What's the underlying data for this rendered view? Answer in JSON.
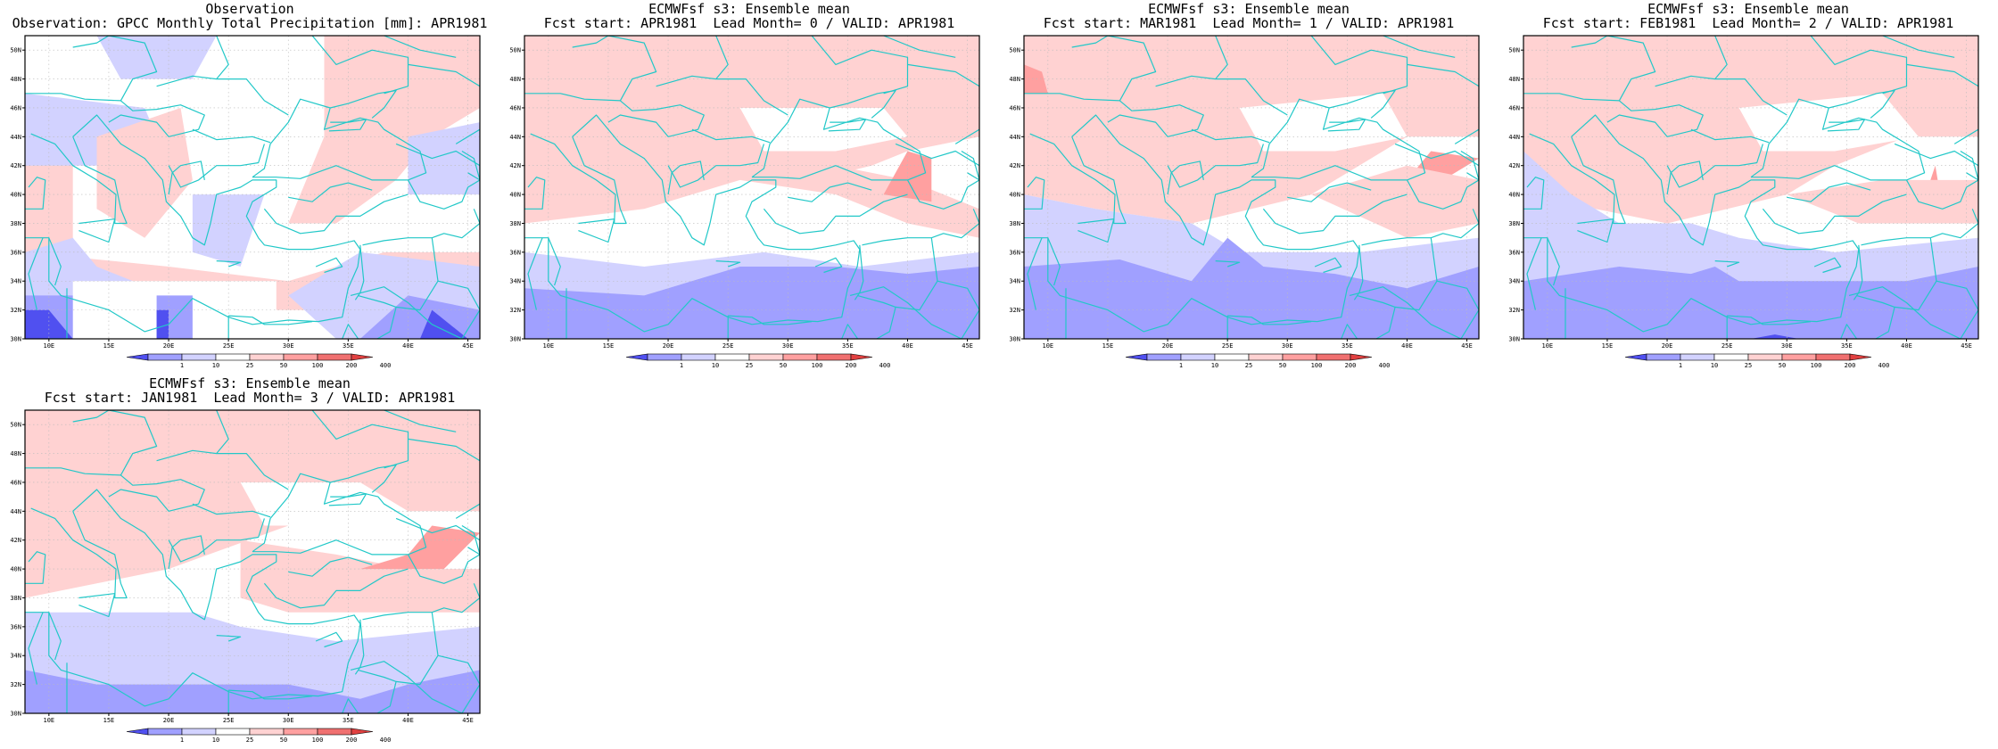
{
  "figure": {
    "panels": [
      {
        "id": "obs",
        "title_line1": "Observation",
        "title_line2": "Observation: GPCC Monthly Total Precipitation [mm]: APR1981",
        "variant": 0
      },
      {
        "id": "lead0",
        "title_line1": "ECMWFsf s3: Ensemble mean",
        "title_line2": "Fcst start: APR1981  Lead Month= 0 / VALID: APR1981",
        "variant": 1
      },
      {
        "id": "lead1",
        "title_line1": "ECMWFsf s3: Ensemble mean",
        "title_line2": "Fcst start: MAR1981  Lead Month= 1 / VALID: APR1981",
        "variant": 2
      },
      {
        "id": "lead2",
        "title_line1": "ECMWFsf s3: Ensemble mean",
        "title_line2": "Fcst start: FEB1981  Lead Month= 2 / VALID: APR1981",
        "variant": 3
      },
      {
        "id": "lead3",
        "title_line1": "ECMWFsf s3: Ensemble mean",
        "title_line2": "Fcst start: JAN1981  Lead Month= 3 / VALID: APR1981",
        "variant": 4
      }
    ],
    "lat_labels": [
      "30N",
      "32N",
      "34N",
      "36N",
      "38N",
      "40N",
      "42N",
      "44N",
      "46N",
      "48N",
      "50N"
    ],
    "lon_labels": [
      "10E",
      "15E",
      "20E",
      "25E",
      "30E",
      "35E",
      "40E",
      "45E"
    ],
    "lon_range": [
      8,
      46
    ],
    "lat_range": [
      30,
      51
    ],
    "colorbar": {
      "levels": [
        "1",
        "10",
        "25",
        "50",
        "100",
        "200",
        "400"
      ],
      "colors": [
        "#5050f0",
        "#a0a0ff",
        "#d2d2ff",
        "#ffffff",
        "#ffd2d2",
        "#ffa0a0",
        "#f07070",
        "#e04040"
      ]
    },
    "coast_color": "#22c8c8"
  }
}
